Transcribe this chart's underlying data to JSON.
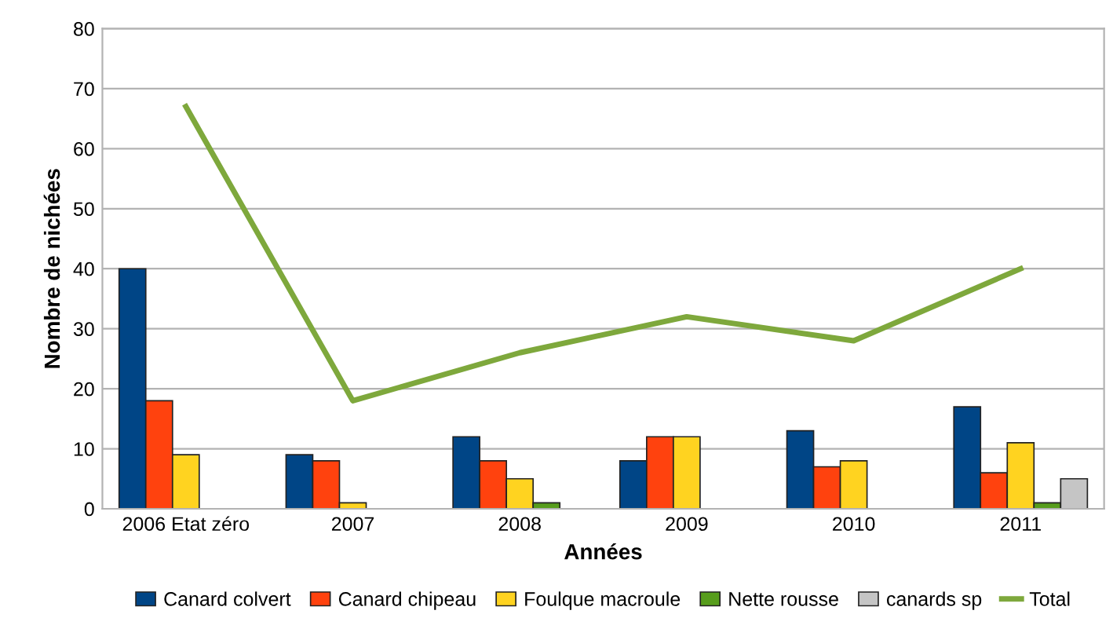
{
  "chart_data": {
    "type": "bar",
    "xlabel": "Années",
    "ylabel": "Nombre de nichées",
    "categories": [
      "2006 Etat zéro",
      "2007",
      "2008",
      "2009",
      "2010",
      "2011"
    ],
    "series": [
      {
        "name": "Canard colvert",
        "color": "#004586",
        "values": [
          40,
          9,
          12,
          8,
          13,
          17
        ]
      },
      {
        "name": "Canard chipeau",
        "color": "#ff420e",
        "values": [
          18,
          8,
          8,
          12,
          7,
          6
        ]
      },
      {
        "name": "Foulque macroule",
        "color": "#ffd320",
        "values": [
          9,
          1,
          5,
          12,
          8,
          11
        ]
      },
      {
        "name": "Nette rousse",
        "color": "#579d1c",
        "values": [
          null,
          null,
          1,
          null,
          null,
          1
        ]
      },
      {
        "name": "canards sp",
        "color": "#c5c5c5",
        "values": [
          null,
          null,
          null,
          null,
          null,
          5
        ]
      },
      {
        "name": "Total",
        "color": "#7ea83c",
        "type": "line",
        "values": [
          67,
          18,
          26,
          32,
          28,
          40
        ]
      }
    ],
    "ylim": [
      0,
      80
    ],
    "yticks": [
      0,
      10,
      20,
      30,
      40,
      50,
      60,
      70,
      80
    ],
    "grid": "y",
    "legend": "bottom"
  }
}
